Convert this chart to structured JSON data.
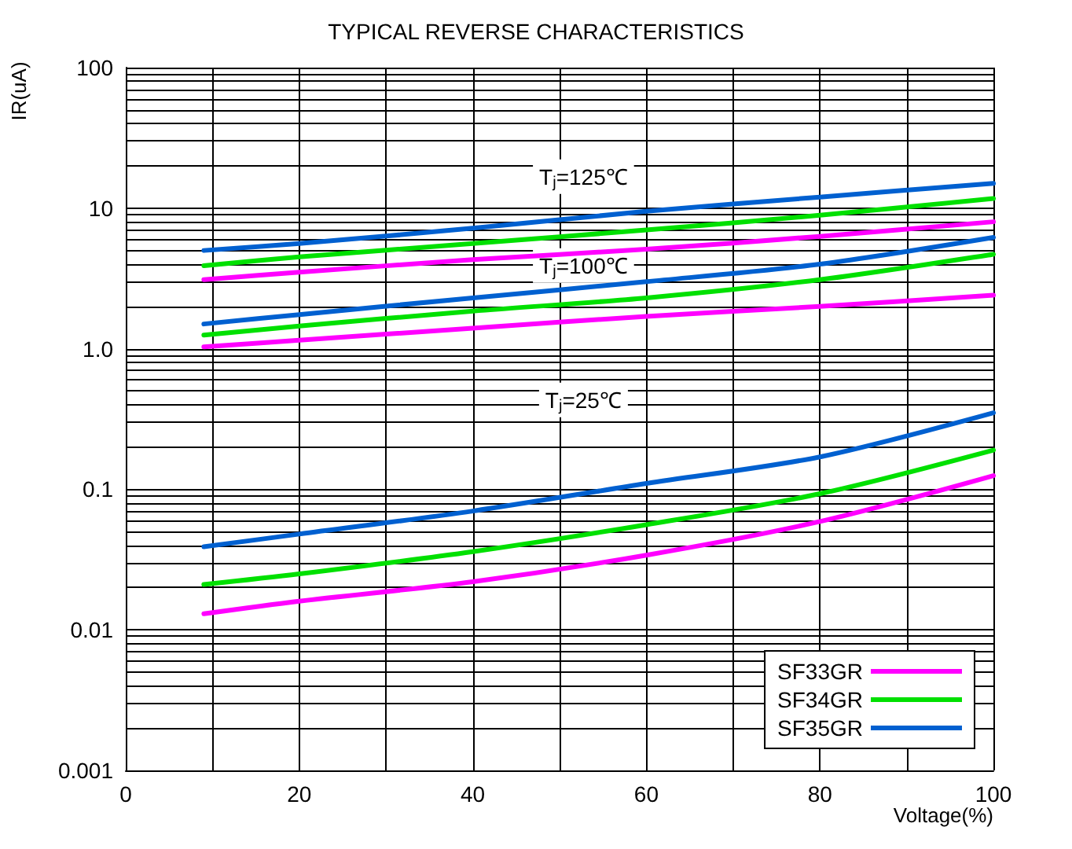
{
  "chart_data": {
    "type": "line",
    "title": "TYPICAL REVERSE CHARACTERISTICS",
    "xlabel": "Voltage(%)",
    "ylabel": "IR(uA)",
    "x": [
      9,
      20,
      40,
      60,
      80,
      100
    ],
    "series": [
      {
        "name": "SF33GR",
        "color": "#ff00ff",
        "values": [
          3.1,
          3.5,
          4.3,
          5.1,
          6.3,
          8
        ]
      },
      {
        "name": "SF34GR",
        "color": "#00e000",
        "values": [
          3.9,
          4.5,
          5.6,
          7,
          8.9,
          11.7
        ]
      },
      {
        "name": "SF35GR",
        "color": "#0060d0",
        "values": [
          5,
          5.6,
          7.2,
          9.5,
          12,
          15
        ]
      },
      {
        "color": "#ff00ff",
        "values": [
          1.03,
          1.15,
          1.4,
          1.7,
          2,
          2.4
        ]
      },
      {
        "color": "#00e000",
        "values": [
          1.25,
          1.45,
          1.85,
          2.3,
          3.1,
          4.7
        ]
      },
      {
        "color": "#0060d0",
        "values": [
          1.5,
          1.75,
          2.3,
          3,
          4,
          6.2
        ]
      },
      {
        "color": "#ff00ff",
        "values": [
          0.013,
          0.016,
          0.022,
          0.034,
          0.059,
          0.125
        ]
      },
      {
        "color": "#00e000",
        "values": [
          0.021,
          0.025,
          0.036,
          0.056,
          0.093,
          0.19
        ]
      },
      {
        "color": "#0060d0",
        "values": [
          0.039,
          0.048,
          0.07,
          0.11,
          0.17,
          0.35
        ]
      }
    ],
    "annotations": [
      "T$_{j}$=125℃",
      "T$_{j}$=100℃",
      "T$_{j}$=25℃"
    ],
    "xlim": [
      0,
      100
    ],
    "xticks": [
      0,
      {
        "value": 10,
        "label": null
      },
      20,
      {
        "value": 30,
        "label": null
      },
      40,
      {
        "value": 50,
        "label": null
      },
      60,
      {
        "value": 70,
        "label": null
      },
      80,
      {
        "value": 90,
        "label": null
      },
      100
    ],
    "ylim": [
      0.001,
      100
    ],
    "yticks": [
      0.001,
      0.01,
      0.1,
      {
        "value": 1,
        "label": "1.0"
      },
      10,
      100
    ],
    "log": "y",
    "grid": true,
    "legend": "bottom right",
    "marker": "none",
    "line_style": "solid"
  }
}
